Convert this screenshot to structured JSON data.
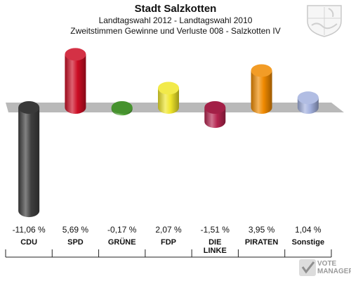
{
  "header": {
    "title": "Stadt Salzkotten",
    "subtitle1": "Landtagswahl 2012 - Landtagswahl 2010",
    "subtitle2": "Zweitstimmen Gewinne und Verluste 008 - Salzkotten IV"
  },
  "branding": {
    "line1": "VOTE",
    "line2": "MANAGER"
  },
  "chart_data": {
    "type": "bar",
    "categories": [
      "CDU",
      "SPD",
      "GRÜNE",
      "FDP",
      "DIE LINKE",
      "PIRATEN",
      "Sonstige"
    ],
    "values": [
      -11.06,
      5.69,
      -0.17,
      2.07,
      -1.51,
      3.95,
      1.04
    ],
    "value_labels": [
      "-11,06 %",
      "5,69 %",
      "-0,17 %",
      "2,07 %",
      "-1,51 %",
      "3,95 %",
      "1,04 %"
    ],
    "colors": [
      "#3f3f3f",
      "#cc0d24",
      "#4ea233",
      "#f0e62a",
      "#b5244f",
      "#f08a00",
      "#a3b1de"
    ],
    "title": "Stadt Salzkotten",
    "xlabel": "",
    "ylabel": "",
    "ylim": [
      -12,
      7
    ]
  }
}
